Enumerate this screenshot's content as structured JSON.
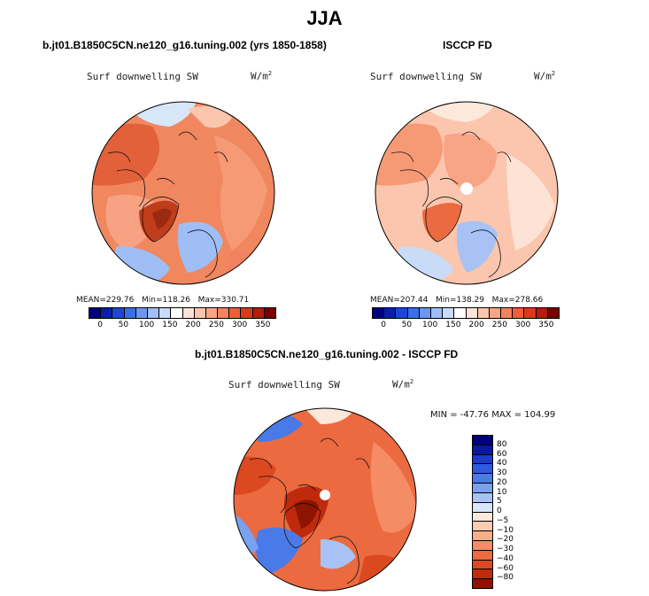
{
  "season": "JJA",
  "panels": {
    "model": {
      "title": "b.jt01.B1850C5CN.ne120_g16.tuning.002 (yrs 1850-1858)",
      "variable": "Surf downwelling SW",
      "units_base": "W/m",
      "units_exp": "2",
      "mean_label": "MEAN=",
      "mean": "229.76",
      "min_label": "Min=",
      "min": "118.26",
      "max_label": "Max=",
      "max": "330.71"
    },
    "obs": {
      "title": "ISCCP FD",
      "variable": "Surf downwelling SW",
      "units_base": "W/m",
      "units_exp": "2",
      "mean_label": "MEAN=",
      "mean": "207.44",
      "min_label": "Min=",
      "min": "138.29",
      "max_label": "Max=",
      "max": "278.66"
    },
    "diff": {
      "title": "b.jt01.B1850C5CN.ne120_g16.tuning.002 - ISCCP FD",
      "variable": "Surf downwelling SW",
      "units_base": "W/m",
      "units_exp": "2",
      "minmax": "MIN = -47.76  MAX = 104.99"
    }
  },
  "colorbar_abs": {
    "colors": [
      "#000080",
      "#0a1fa8",
      "#1e46d2",
      "#3c6ee6",
      "#6e96f0",
      "#9ebef5",
      "#c8dcf8",
      "#ffffff",
      "#fde3d6",
      "#fbc6ad",
      "#f8a586",
      "#f3825f",
      "#ec5f3a",
      "#d83a1c",
      "#b01e0c",
      "#780000"
    ],
    "tick_labels": [
      "0",
      "50",
      "100",
      "150",
      "200",
      "250",
      "300",
      "350"
    ]
  },
  "colorbar_diff": {
    "colors": [
      "#00007a",
      "#0a18a0",
      "#1a3cc8",
      "#2d5ae0",
      "#4a7ae8",
      "#7aa0f0",
      "#a8c2f5",
      "#d8e6fa",
      "#fde8dc",
      "#fbcbb2",
      "#f8ae8c",
      "#f48c66",
      "#ec6a40",
      "#dc4820",
      "#c02a0c",
      "#8c1400"
    ],
    "tick_labels": [
      "80",
      "60",
      "40",
      "30",
      "20",
      "10",
      "5",
      "0",
      "−5",
      "−10",
      "−20",
      "−30",
      "−40",
      "−60",
      "−80"
    ]
  }
}
